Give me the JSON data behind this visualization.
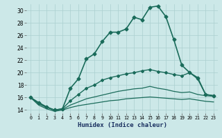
{
  "xlabel": "Humidex (Indice chaleur)",
  "ylabel": "",
  "background_color": "#cce8e8",
  "grid_color": "#aacfcf",
  "line_color": "#1a6b5a",
  "xlim": [
    -0.5,
    23.5
  ],
  "ylim": [
    13.5,
    31.0
  ],
  "yticks": [
    14,
    16,
    18,
    20,
    22,
    24,
    26,
    28,
    30
  ],
  "xtick_labels": [
    "0",
    "1",
    "2",
    "3",
    "4",
    "5",
    "6",
    "7",
    "8",
    "9",
    "10",
    "11",
    "12",
    "13",
    "14",
    "15",
    "16",
    "17",
    "18",
    "19",
    "20",
    "21",
    "22",
    "23"
  ],
  "series": [
    {
      "x": [
        0,
        1,
        2,
        3,
        4,
        5,
        6,
        7,
        8,
        9,
        10,
        11,
        12,
        13,
        14,
        15,
        16,
        17,
        18,
        19,
        20,
        21,
        22,
        23
      ],
      "y": [
        16.0,
        15.2,
        14.5,
        14.0,
        14.2,
        17.5,
        19.0,
        22.2,
        23.0,
        25.0,
        26.5,
        26.5,
        27.0,
        28.9,
        28.5,
        30.5,
        30.7,
        29.0,
        25.3,
        21.2,
        20.0,
        19.2,
        16.5,
        16.3
      ],
      "marker": "D",
      "markersize": 2.5,
      "linewidth": 1.2
    },
    {
      "x": [
        0,
        1,
        2,
        3,
        4,
        5,
        6,
        7,
        8,
        9,
        10,
        11,
        12,
        13,
        14,
        15,
        16,
        17,
        18,
        19,
        20,
        21,
        22,
        23
      ],
      "y": [
        16.0,
        15.2,
        14.5,
        14.0,
        14.2,
        15.5,
        16.5,
        17.5,
        18.0,
        18.8,
        19.2,
        19.5,
        19.8,
        20.0,
        20.3,
        20.5,
        20.2,
        20.0,
        19.7,
        19.5,
        20.0,
        19.0,
        16.5,
        16.3
      ],
      "marker": "D",
      "markersize": 2.0,
      "linewidth": 1.0
    },
    {
      "x": [
        0,
        1,
        2,
        3,
        4,
        5,
        6,
        7,
        8,
        9,
        10,
        11,
        12,
        13,
        14,
        15,
        16,
        17,
        18,
        19,
        20,
        21,
        22,
        23
      ],
      "y": [
        16.0,
        15.0,
        14.4,
        14.0,
        14.1,
        14.8,
        15.3,
        15.8,
        16.1,
        16.4,
        16.7,
        17.0,
        17.2,
        17.4,
        17.5,
        17.8,
        17.5,
        17.3,
        17.0,
        16.8,
        16.9,
        16.5,
        16.3,
        16.2
      ],
      "marker": null,
      "markersize": 0,
      "linewidth": 0.9
    },
    {
      "x": [
        0,
        1,
        2,
        3,
        4,
        5,
        6,
        7,
        8,
        9,
        10,
        11,
        12,
        13,
        14,
        15,
        16,
        17,
        18,
        19,
        20,
        21,
        22,
        23
      ],
      "y": [
        16.0,
        14.8,
        14.2,
        13.8,
        14.0,
        14.4,
        14.7,
        14.9,
        15.1,
        15.3,
        15.5,
        15.6,
        15.8,
        15.9,
        16.0,
        16.1,
        16.0,
        15.9,
        15.8,
        15.7,
        15.8,
        15.6,
        15.4,
        15.3
      ],
      "marker": null,
      "markersize": 0,
      "linewidth": 0.9
    }
  ]
}
